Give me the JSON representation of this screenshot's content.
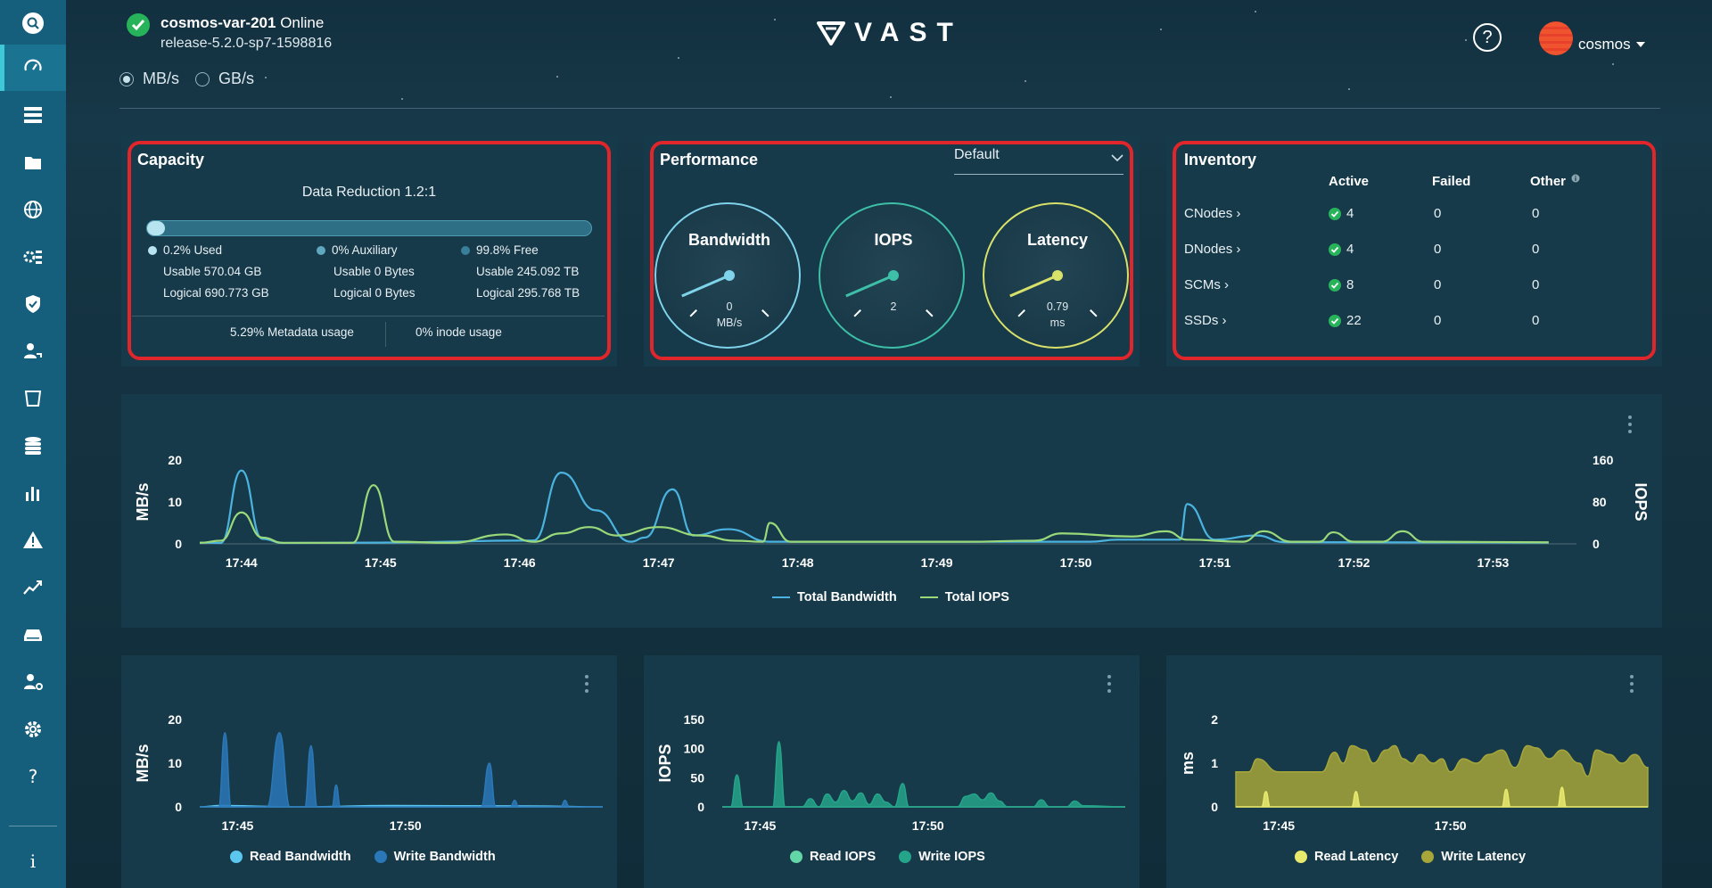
{
  "header": {
    "cluster_name": "cosmos-var-201",
    "cluster_status": "Online",
    "release": "release-5.2.0-sp7-1598816",
    "units": [
      "MB/s",
      "GB/s"
    ],
    "selected_unit": "MB/s",
    "logo_text": "VAST",
    "user": "cosmos",
    "help_label": "?"
  },
  "sidebar": {
    "items": [
      "search-icon",
      "dashboard-icon",
      "list-view-icon",
      "folder-icon",
      "globe-icon",
      "gear-nodes-icon",
      "shield-icon",
      "user-key-icon",
      "frame-icon",
      "database-icon",
      "bar-chart-icon",
      "alert-icon",
      "trend-icon",
      "drive-icon",
      "user-settings-icon",
      "settings-icon",
      "help-icon",
      "info-icon"
    ],
    "help_glyph": "?",
    "info_glyph": "i"
  },
  "capacity": {
    "title": "Capacity",
    "data_reduction": "Data Reduction 1.2:1",
    "used_fraction": 0.002,
    "used": {
      "label": "0.2% Used",
      "usable": "Usable 570.04 GB",
      "logical": "Logical 690.773 GB",
      "color": "#b8e4f0"
    },
    "auxiliary": {
      "label": "0% Auxiliary",
      "usable": "Usable 0 Bytes",
      "logical": "Logical 0 Bytes",
      "color": "#5fa8c0"
    },
    "free": {
      "label": "99.8% Free",
      "usable": "Usable 245.092 TB",
      "logical": "Logical 295.768 TB",
      "color": "#3a7f99"
    },
    "metadata": "5.29% Metadata usage",
    "inode": "0% inode usage"
  },
  "performance": {
    "title": "Performance",
    "selector": "Default",
    "gauges": [
      {
        "title": "Bandwidth",
        "value": "0",
        "unit": "MB/s",
        "needle": 0.08,
        "color": "#7fd3ea"
      },
      {
        "title": "IOPS",
        "value": "2",
        "unit": "",
        "needle": 0.08,
        "color": "#3dbfa8"
      },
      {
        "title": "Latency",
        "value": "0.79",
        "unit": "ms",
        "needle": 0.08,
        "color": "#d8e26a"
      }
    ]
  },
  "inventory": {
    "title": "Inventory",
    "columns": [
      "Active",
      "Failed",
      "Other"
    ],
    "rows": [
      {
        "name": "CNodes ›",
        "active": "4",
        "failed": "0",
        "other": "0"
      },
      {
        "name": "DNodes ›",
        "active": "4",
        "failed": "0",
        "other": "0"
      },
      {
        "name": "SCMs ›",
        "active": "8",
        "failed": "0",
        "other": "0"
      },
      {
        "name": "SSDs ›",
        "active": "22",
        "failed": "0",
        "other": "0"
      }
    ]
  },
  "chart_data": [
    {
      "type": "line",
      "x": [
        "17:44",
        "17:45",
        "17:46",
        "17:47",
        "17:48",
        "17:49",
        "17:50",
        "17:51",
        "17:52",
        "17:53"
      ],
      "ylabel": "MB/s",
      "y2label": "IOPS",
      "ylim": [
        0,
        20
      ],
      "y2lim": [
        0,
        160
      ],
      "yticks": [
        "20",
        "10",
        "0"
      ],
      "y2ticks": [
        "160",
        "80",
        "0"
      ],
      "series": [
        {
          "name": "Total Bandwidth",
          "axis": "left",
          "color": "#4bb3e0",
          "points": [
            [
              0,
              0.3
            ],
            [
              0.15,
              0.2
            ],
            [
              0.3,
              17.5
            ],
            [
              0.45,
              1.2
            ],
            [
              0.6,
              0.2
            ],
            [
              1.3,
              0.3
            ],
            [
              2.4,
              0.8
            ],
            [
              2.6,
              17
            ],
            [
              2.85,
              8
            ],
            [
              3.1,
              0.5
            ],
            [
              3.2,
              1.5
            ],
            [
              3.4,
              13
            ],
            [
              3.55,
              2
            ],
            [
              3.8,
              3.5
            ],
            [
              4.1,
              0.5
            ],
            [
              6.4,
              0.5
            ],
            [
              6.6,
              1
            ],
            [
              7.05,
              1
            ],
            [
              7.1,
              9.5
            ],
            [
              7.3,
              1
            ],
            [
              7.6,
              2
            ],
            [
              7.8,
              0.4
            ],
            [
              9.7,
              0.3
            ]
          ]
        },
        {
          "name": "Total IOPS",
          "axis": "right",
          "color": "#9ad97a",
          "points": [
            [
              0,
              2
            ],
            [
              0.15,
              6
            ],
            [
              0.3,
              60
            ],
            [
              0.45,
              12
            ],
            [
              0.6,
              2
            ],
            [
              1.1,
              2
            ],
            [
              1.25,
              112
            ],
            [
              1.4,
              4
            ],
            [
              1.8,
              2
            ],
            [
              2.2,
              18
            ],
            [
              2.4,
              4
            ],
            [
              2.6,
              20
            ],
            [
              2.8,
              32
            ],
            [
              3.0,
              16
            ],
            [
              3.3,
              32
            ],
            [
              3.6,
              16
            ],
            [
              3.85,
              6
            ],
            [
              4.05,
              4
            ],
            [
              4.1,
              40
            ],
            [
              4.25,
              4
            ],
            [
              5.5,
              4
            ],
            [
              6.0,
              6
            ],
            [
              6.2,
              20
            ],
            [
              6.7,
              14
            ],
            [
              6.95,
              24
            ],
            [
              7.1,
              8
            ],
            [
              7.5,
              4
            ],
            [
              7.65,
              24
            ],
            [
              7.85,
              4
            ],
            [
              8.05,
              4
            ],
            [
              8.15,
              22
            ],
            [
              8.3,
              4
            ],
            [
              8.5,
              4
            ],
            [
              8.65,
              24
            ],
            [
              8.8,
              4
            ],
            [
              9.7,
              3
            ]
          ]
        }
      ]
    },
    {
      "type": "area",
      "x": [
        "17:45",
        "17:50"
      ],
      "ylabel": "MB/s",
      "ylim": [
        0,
        20
      ],
      "yticks": [
        "20",
        "10",
        "0"
      ],
      "series": [
        {
          "name": "Read Bandwidth",
          "color": "#5bc7ef",
          "points": [
            [
              0,
              0
            ],
            [
              0.5,
              0.3
            ],
            [
              2.3,
              0
            ],
            [
              4.6,
              0.3
            ],
            [
              7.9,
              0.2
            ],
            [
              9.6,
              0
            ]
          ]
        },
        {
          "name": "Write Bandwidth",
          "color": "#2a78b8",
          "points": [
            [
              0,
              0
            ],
            [
              0.45,
              0
            ],
            [
              0.6,
              17
            ],
            [
              0.75,
              0
            ],
            [
              1.6,
              0
            ],
            [
              1.9,
              17
            ],
            [
              2.15,
              0
            ],
            [
              2.5,
              0
            ],
            [
              2.65,
              14
            ],
            [
              2.8,
              0
            ],
            [
              3.15,
              0
            ],
            [
              3.25,
              5
            ],
            [
              3.35,
              0
            ],
            [
              6.7,
              0
            ],
            [
              6.9,
              10
            ],
            [
              7.05,
              0
            ],
            [
              7.4,
              0
            ],
            [
              7.5,
              1.5
            ],
            [
              7.6,
              0
            ],
            [
              8.6,
              0
            ],
            [
              8.7,
              1.5
            ],
            [
              8.8,
              0
            ],
            [
              9.6,
              0
            ]
          ]
        }
      ]
    },
    {
      "type": "area",
      "x": [
        "17:45",
        "17:50"
      ],
      "ylabel": "IOPS",
      "ylim": [
        0,
        150
      ],
      "yticks": [
        "150",
        "100",
        "50",
        "0"
      ],
      "series": [
        {
          "name": "Read IOPS",
          "color": "#63d6a8",
          "points": [
            [
              0,
              0
            ],
            [
              9.6,
              0
            ]
          ]
        },
        {
          "name": "Write IOPS",
          "color": "#24a58a",
          "points": [
            [
              0,
              0
            ],
            [
              0.2,
              0
            ],
            [
              0.35,
              55
            ],
            [
              0.5,
              0
            ],
            [
              1.2,
              0
            ],
            [
              1.35,
              112
            ],
            [
              1.5,
              0
            ],
            [
              1.9,
              0
            ],
            [
              2.1,
              14
            ],
            [
              2.3,
              0
            ],
            [
              2.5,
              22
            ],
            [
              2.7,
              8
            ],
            [
              2.9,
              28
            ],
            [
              3.1,
              10
            ],
            [
              3.3,
              24
            ],
            [
              3.5,
              4
            ],
            [
              3.7,
              22
            ],
            [
              3.9,
              8
            ],
            [
              4.1,
              0
            ],
            [
              4.3,
              40
            ],
            [
              4.45,
              0
            ],
            [
              5.6,
              0
            ],
            [
              5.8,
              18
            ],
            [
              6.0,
              22
            ],
            [
              6.2,
              12
            ],
            [
              6.4,
              24
            ],
            [
              6.6,
              10
            ],
            [
              6.8,
              0
            ],
            [
              7.4,
              0
            ],
            [
              7.6,
              12
            ],
            [
              7.8,
              0
            ],
            [
              8.2,
              0
            ],
            [
              8.4,
              10
            ],
            [
              8.6,
              2
            ],
            [
              9.6,
              0
            ]
          ]
        }
      ]
    },
    {
      "type": "area",
      "x": [
        "17:45",
        "17:50"
      ],
      "ylabel": "ms",
      "ylim": [
        0,
        2
      ],
      "yticks": [
        "2",
        "1",
        "0"
      ],
      "series": [
        {
          "name": "Write Latency",
          "color": "#a6a63a",
          "points": [
            [
              0,
              0.8
            ],
            [
              0.3,
              0.8
            ],
            [
              0.5,
              1.1
            ],
            [
              1.0,
              0.8
            ],
            [
              2.0,
              0.8
            ],
            [
              2.3,
              1.25
            ],
            [
              2.5,
              1.0
            ],
            [
              2.7,
              1.4
            ],
            [
              3.0,
              1.3
            ],
            [
              3.2,
              1.0
            ],
            [
              3.5,
              1.3
            ],
            [
              3.7,
              1.4
            ],
            [
              3.9,
              1.1
            ],
            [
              4.1,
              1.0
            ],
            [
              4.3,
              1.2
            ],
            [
              4.6,
              1.0
            ],
            [
              4.8,
              1.1
            ],
            [
              5.0,
              0.8
            ],
            [
              5.3,
              1.1
            ],
            [
              5.6,
              1.0
            ],
            [
              5.9,
              1.2
            ],
            [
              6.2,
              1.3
            ],
            [
              6.5,
              0.9
            ],
            [
              6.8,
              1.4
            ],
            [
              7.0,
              1.35
            ],
            [
              7.3,
              1.1
            ],
            [
              7.6,
              1.3
            ],
            [
              8.0,
              1.0
            ],
            [
              8.2,
              0.7
            ],
            [
              8.4,
              1.3
            ],
            [
              8.7,
              1.2
            ],
            [
              9.0,
              1.0
            ],
            [
              9.3,
              1.2
            ],
            [
              9.6,
              0.9
            ]
          ]
        },
        {
          "name": "Read Latency",
          "color": "#e8ea6e",
          "points": [
            [
              0,
              0
            ],
            [
              0.6,
              0
            ],
            [
              0.7,
              0.35
            ],
            [
              0.8,
              0
            ],
            [
              2.7,
              0
            ],
            [
              2.8,
              0.35
            ],
            [
              2.9,
              0
            ],
            [
              6.2,
              0
            ],
            [
              6.3,
              0.4
            ],
            [
              6.4,
              0
            ],
            [
              7.5,
              0
            ],
            [
              7.6,
              0.45
            ],
            [
              7.7,
              0
            ],
            [
              9.6,
              0
            ]
          ]
        }
      ]
    }
  ]
}
